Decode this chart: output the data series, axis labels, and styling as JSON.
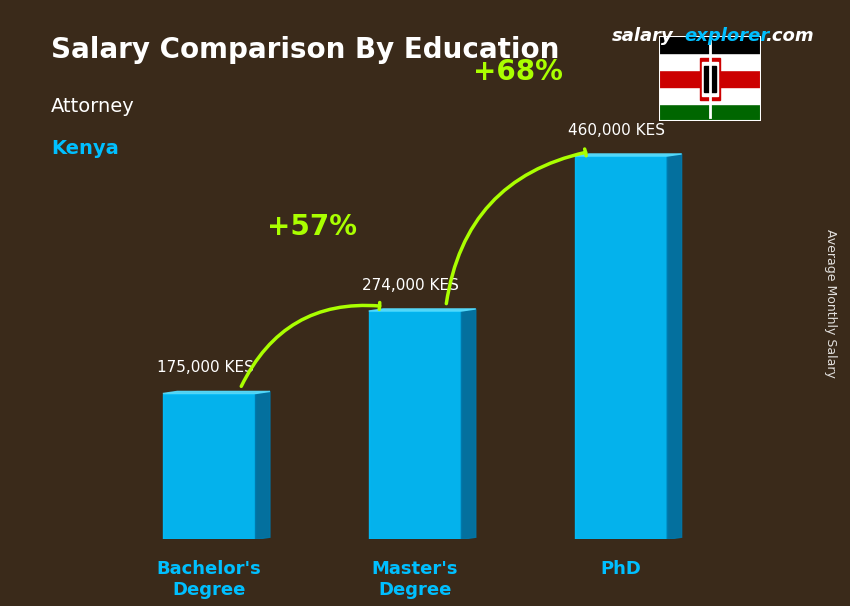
{
  "title": "Salary Comparison By Education",
  "subtitle_job": "Attorney",
  "subtitle_location": "Kenya",
  "ylabel": "Average Monthly Salary",
  "categories": [
    "Bachelor's\nDegree",
    "Master's\nDegree",
    "PhD"
  ],
  "values": [
    175000,
    274000,
    460000
  ],
  "value_labels": [
    "175,000 KES",
    "274,000 KES",
    "460,000 KES"
  ],
  "bar_color_top": "#00cfff",
  "bar_color_bottom": "#0088cc",
  "bar_color_face": "#00bfff",
  "pct_labels": [
    "+57%",
    "+68%"
  ],
  "pct_color": "#aaff00",
  "background_color": "#3a2a1a",
  "title_color": "#ffffff",
  "subtitle_job_color": "#ffffff",
  "subtitle_kenya_color": "#00bfff",
  "value_label_color": "#ffffff",
  "tick_label_color": "#00bfff",
  "watermark": "salaryexplorer.com",
  "watermark_salary": "salary",
  "watermark_explorer": "explorer",
  "ylim": [
    0,
    560000
  ],
  "bar_width": 0.45
}
